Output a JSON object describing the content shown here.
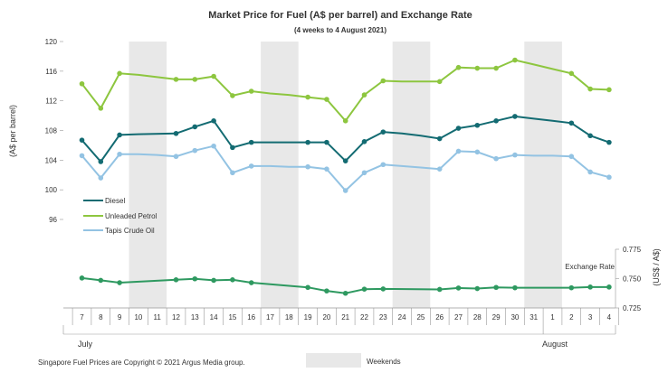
{
  "chart_data": {
    "type": "line",
    "title": "Market Price for Fuel  (A$ per barrel) and Exchange  Rate",
    "subtitle": "(4 weeks to 4 August 2021)",
    "ylabel": "(A$ per barrel)",
    "ylabel_right": "(US$ / A$)",
    "ylim": [
      96,
      120
    ],
    "y_ticks": [
      96,
      100,
      104,
      108,
      112,
      116,
      120
    ],
    "ylim_right": [
      0.725,
      0.775
    ],
    "y_ticks_right": [
      0.725,
      0.75,
      0.775
    ],
    "x_ticks": [
      "7",
      "8",
      "9",
      "10",
      "11",
      "12",
      "13",
      "14",
      "15",
      "16",
      "17",
      "18",
      "19",
      "20",
      "21",
      "22",
      "23",
      "24",
      "25",
      "26",
      "27",
      "28",
      "29",
      "30",
      "31",
      "1",
      "2",
      "3",
      "4"
    ],
    "months": [
      "July",
      "August"
    ],
    "weekend_shading": [
      [
        "10",
        "11"
      ],
      [
        "17",
        "18"
      ],
      [
        "24",
        "25"
      ],
      [
        "31",
        "1"
      ]
    ],
    "legend_position": "middle-left",
    "series": [
      {
        "name": "Diesel",
        "color": "#136b72",
        "x": [
          "7",
          "8",
          "9",
          "12",
          "13",
          "14",
          "15",
          "16",
          "19",
          "20",
          "21",
          "22",
          "23",
          "26",
          "27",
          "28",
          "29",
          "30",
          "2",
          "3",
          "4"
        ],
        "values": [
          106.7,
          103.8,
          107.4,
          107.6,
          108.5,
          109.3,
          105.7,
          106.4,
          106.4,
          106.4,
          103.9,
          106.5,
          107.8,
          106.9,
          108.3,
          108.7,
          109.3,
          109.9,
          109.0,
          107.3,
          106.4
        ],
        "line_points": {
          "10": 107.5,
          "31": 109.6,
          "1": 109.3,
          "24": 107.6,
          "25": 107.3,
          "17": 106.4,
          "18": 106.4
        }
      },
      {
        "name": "Unleaded Petrol",
        "color": "#8dc63f",
        "x": [
          "7",
          "8",
          "9",
          "12",
          "13",
          "14",
          "15",
          "16",
          "19",
          "20",
          "21",
          "22",
          "23",
          "26",
          "27",
          "28",
          "29",
          "30",
          "2",
          "3",
          "4"
        ],
        "values": [
          114.3,
          111.0,
          115.7,
          114.9,
          114.9,
          115.3,
          112.7,
          113.3,
          112.5,
          112.2,
          109.3,
          112.8,
          114.7,
          114.6,
          116.5,
          116.4,
          116.4,
          117.5,
          115.7,
          113.6,
          113.5
        ],
        "line_points": {
          "10": 115.5,
          "11": 115.2,
          "17": 113.0,
          "18": 112.8,
          "24": 114.6,
          "25": 114.6,
          "31": 116.9,
          "1": 116.3
        }
      },
      {
        "name": "Tapis Crude Oil",
        "color": "#93c3e3",
        "x": [
          "7",
          "8",
          "9",
          "12",
          "13",
          "14",
          "15",
          "16",
          "19",
          "20",
          "21",
          "22",
          "23",
          "26",
          "27",
          "28",
          "29",
          "30",
          "2",
          "3",
          "4"
        ],
        "values": [
          104.6,
          101.6,
          104.8,
          104.5,
          105.3,
          105.9,
          102.3,
          103.2,
          103.1,
          102.8,
          99.9,
          102.3,
          103.4,
          102.8,
          105.2,
          105.1,
          104.2,
          104.7,
          104.5,
          102.4,
          101.7
        ],
        "line_points": {
          "10": 104.8,
          "11": 104.7,
          "17": 103.2,
          "18": 103.1,
          "24": 103.2,
          "25": 103.0,
          "31": 104.6,
          "1": 104.6
        }
      }
    ],
    "exchange_rate": {
      "name": "Exchange  Rate",
      "color": "#2e9960",
      "x": [
        "7",
        "8",
        "9",
        "12",
        "13",
        "14",
        "15",
        "16",
        "19",
        "20",
        "21",
        "22",
        "23",
        "26",
        "27",
        "28",
        "29",
        "30",
        "2",
        "3",
        "4"
      ],
      "values": [
        0.7505,
        0.7485,
        0.7465,
        0.749,
        0.7498,
        0.7485,
        0.749,
        0.7465,
        0.7425,
        0.7395,
        0.7375,
        0.741,
        0.7412,
        0.7408,
        0.742,
        0.7415,
        0.7425,
        0.7422,
        0.7422,
        0.7428,
        0.7428
      ]
    }
  },
  "footer": {
    "copyright": "Singapore  Fuel Prices are Copyright © 2021  Argus Media group.",
    "weekends_label": "Weekends"
  }
}
